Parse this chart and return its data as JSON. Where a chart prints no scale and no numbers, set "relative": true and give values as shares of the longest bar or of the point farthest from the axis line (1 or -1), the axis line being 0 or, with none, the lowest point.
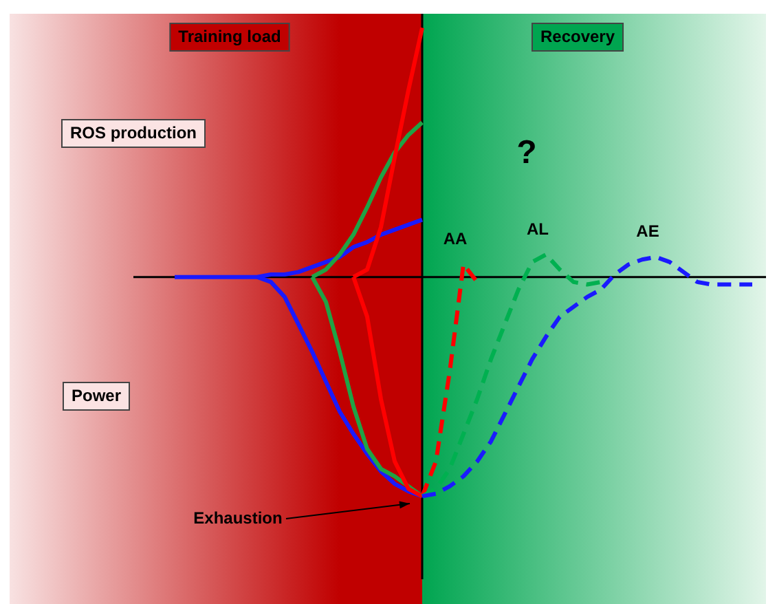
{
  "chart_data": {
    "type": "line",
    "relative": true,
    "tick_labels": false,
    "legend": false,
    "marker": "none",
    "categories": [
      null,
      null,
      null,
      null,
      null,
      null,
      null,
      null,
      null,
      null,
      null,
      null,
      null,
      null,
      null,
      null,
      null,
      null,
      null,
      null,
      null,
      null,
      null,
      null,
      null,
      null,
      null,
      null,
      null,
      null,
      null,
      null,
      null,
      null,
      null,
      null,
      null,
      null,
      null,
      null,
      null,
      null,
      null,
      null,
      null,
      null,
      null,
      null,
      null,
      null,
      null,
      null,
      null,
      null,
      null,
      null
    ],
    "series": [
      {
        "color": "#1a1aff",
        "line_style": "solid",
        "values": [
          null,
          null,
          null,
          null,
          null,
          null,
          null,
          null,
          null,
          null,
          null,
          null,
          0,
          0,
          0,
          0,
          0,
          0,
          0,
          0.01,
          0.01,
          0.02,
          0.04,
          0.06,
          0.08,
          0.12,
          0.14,
          0.17,
          0.19,
          0.21,
          0.23,
          null,
          null,
          null,
          null,
          null,
          null,
          null,
          null,
          null,
          null,
          null,
          null,
          null,
          null,
          null,
          null,
          null,
          null,
          null,
          null,
          null,
          null,
          null,
          null,
          null
        ]
      },
      {
        "color": "#1a1aff",
        "line_style": "solid",
        "values": [
          null,
          null,
          null,
          null,
          null,
          null,
          null,
          null,
          null,
          null,
          null,
          null,
          null,
          null,
          null,
          null,
          null,
          null,
          0,
          -0.02,
          -0.08,
          -0.19,
          -0.3,
          -0.42,
          -0.54,
          -0.63,
          -0.71,
          -0.78,
          -0.83,
          -0.86,
          -0.88,
          null,
          null,
          null,
          null,
          null,
          null,
          null,
          null,
          null,
          null,
          null,
          null,
          null,
          null,
          null,
          null,
          null,
          null,
          null,
          null,
          null,
          null,
          null,
          null,
          null
        ]
      },
      {
        "color": "#1fa345",
        "line_style": "solid",
        "values": [
          null,
          null,
          null,
          null,
          null,
          null,
          null,
          null,
          null,
          null,
          null,
          null,
          null,
          null,
          null,
          null,
          null,
          null,
          null,
          null,
          null,
          null,
          0,
          0.03,
          0.09,
          0.17,
          0.28,
          0.4,
          0.5,
          0.57,
          0.62,
          null,
          null,
          null,
          null,
          null,
          null,
          null,
          null,
          null,
          null,
          null,
          null,
          null,
          null,
          null,
          null,
          null,
          null,
          null,
          null,
          null,
          null,
          null,
          null,
          null
        ]
      },
      {
        "color": "#1fa345",
        "line_style": "solid",
        "values": [
          null,
          null,
          null,
          null,
          null,
          null,
          null,
          null,
          null,
          null,
          null,
          null,
          null,
          null,
          null,
          null,
          null,
          null,
          null,
          null,
          null,
          null,
          0,
          -0.1,
          -0.3,
          -0.52,
          -0.69,
          -0.77,
          -0.8,
          -0.84,
          -0.88,
          null,
          null,
          null,
          null,
          null,
          null,
          null,
          null,
          null,
          null,
          null,
          null,
          null,
          null,
          null,
          null,
          null,
          null,
          null,
          null,
          null,
          null,
          null,
          null,
          null
        ]
      },
      {
        "color": "#ff0000",
        "line_style": "solid",
        "values": [
          null,
          null,
          null,
          null,
          null,
          null,
          null,
          null,
          null,
          null,
          null,
          null,
          null,
          null,
          null,
          null,
          null,
          null,
          null,
          null,
          null,
          null,
          null,
          null,
          null,
          0,
          0.03,
          0.2,
          0.48,
          0.75,
          1,
          null,
          null,
          null,
          null,
          null,
          null,
          null,
          null,
          null,
          null,
          null,
          null,
          null,
          null,
          null,
          null,
          null,
          null,
          null,
          null,
          null,
          null,
          null,
          null,
          null
        ]
      },
      {
        "color": "#ff0000",
        "line_style": "solid",
        "values": [
          null,
          null,
          null,
          null,
          null,
          null,
          null,
          null,
          null,
          null,
          null,
          null,
          null,
          null,
          null,
          null,
          null,
          null,
          null,
          null,
          null,
          null,
          null,
          null,
          null,
          0,
          -0.16,
          -0.49,
          -0.74,
          -0.85,
          -0.88,
          null,
          null,
          null,
          null,
          null,
          null,
          null,
          null,
          null,
          null,
          null,
          null,
          null,
          null,
          null,
          null,
          null,
          null,
          null,
          null,
          null,
          null,
          null,
          null,
          null
        ]
      },
      {
        "name": "AA",
        "color": "#ff0000",
        "line_style": "dashed",
        "values": [
          null,
          null,
          null,
          null,
          null,
          null,
          null,
          null,
          null,
          null,
          null,
          null,
          null,
          null,
          null,
          null,
          null,
          null,
          null,
          null,
          null,
          null,
          null,
          null,
          null,
          null,
          null,
          null,
          null,
          null,
          -0.88,
          -0.74,
          -0.38,
          0.05,
          -0.02,
          null,
          null,
          null,
          null,
          null,
          null,
          null,
          null,
          null,
          null,
          null,
          null,
          null,
          null,
          null,
          null,
          null,
          null,
          null,
          null,
          null
        ]
      },
      {
        "name": "AL",
        "color": "#00b050",
        "line_style": "dashed",
        "values": [
          null,
          null,
          null,
          null,
          null,
          null,
          null,
          null,
          null,
          null,
          null,
          null,
          null,
          null,
          null,
          null,
          null,
          null,
          null,
          null,
          null,
          null,
          null,
          null,
          null,
          null,
          null,
          null,
          null,
          null,
          -0.88,
          -0.85,
          -0.77,
          -0.63,
          -0.49,
          -0.33,
          -0.19,
          -0.05,
          0.06,
          0.09,
          0.03,
          -0.02,
          -0.03,
          -0.02,
          null,
          null,
          null,
          null,
          null,
          null,
          null,
          null,
          null,
          null,
          null,
          null
        ]
      },
      {
        "name": "AE",
        "color": "#1a1aff",
        "line_style": "dashed",
        "values": [
          null,
          null,
          null,
          null,
          null,
          null,
          null,
          null,
          null,
          null,
          null,
          null,
          null,
          null,
          null,
          null,
          null,
          null,
          null,
          null,
          null,
          null,
          null,
          null,
          null,
          null,
          null,
          null,
          null,
          null,
          -0.88,
          -0.87,
          -0.84,
          -0.8,
          -0.74,
          -0.66,
          -0.55,
          -0.44,
          -0.33,
          -0.24,
          -0.16,
          -0.12,
          -0.08,
          -0.05,
          0.01,
          0.05,
          0.07,
          0.08,
          0.06,
          0.02,
          -0.02,
          -0.03,
          -0.03,
          -0.03,
          -0.03,
          null
        ]
      }
    ],
    "annotations": [
      "Training load",
      "Recovery",
      "ROS production",
      "Power",
      "?",
      "Exhaustion"
    ]
  }
}
